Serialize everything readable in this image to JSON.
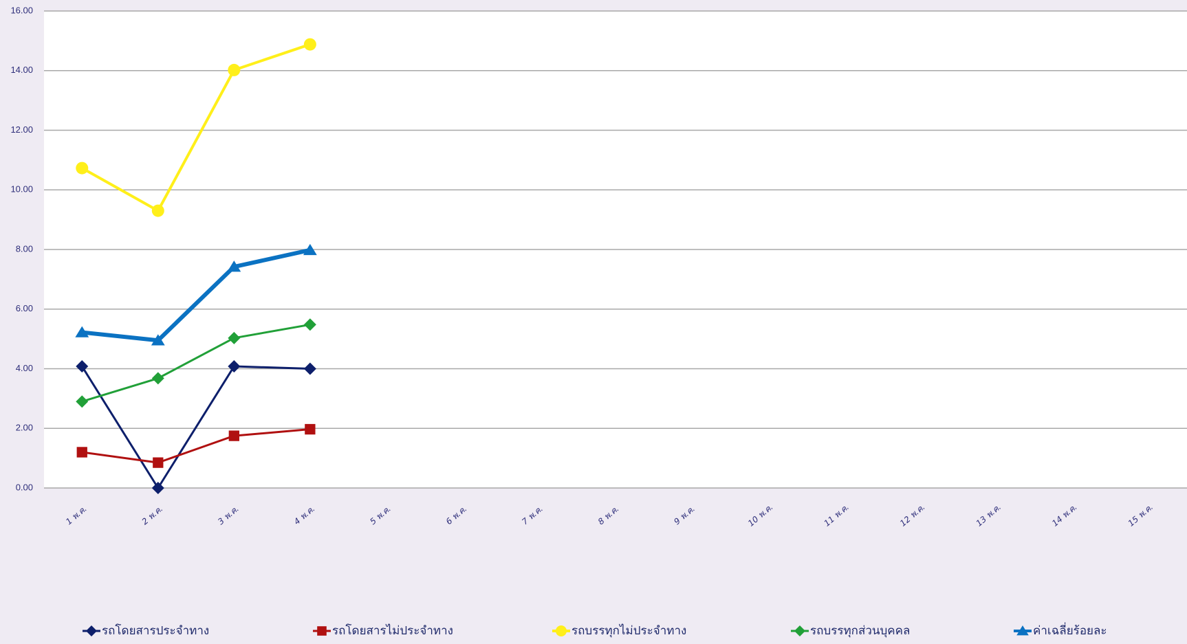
{
  "chart_data": {
    "type": "line",
    "categories": [
      "1 พ.ค.",
      "2 พ.ค.",
      "3 พ.ค.",
      "4 พ.ค.",
      "5 พ.ค.",
      "6 พ.ค.",
      "7 พ.ค.",
      "8 พ.ค.",
      "9 พ.ค.",
      "10 พ.ค.",
      "11 พ.ค.",
      "12 พ.ค.",
      "13 พ.ค.",
      "14 พ.ค.",
      "15 พ.ค."
    ],
    "series": [
      {
        "name": "รถโดยสารประจำทาง",
        "color": "#0d1f6b",
        "marker": "diamond",
        "width": 3,
        "values": [
          4.08,
          0.0,
          4.08,
          4.0,
          null,
          null,
          null,
          null,
          null,
          null,
          null,
          null,
          null,
          null,
          null
        ]
      },
      {
        "name": "รถโดยสารไม่ประจำทาง",
        "color": "#b01010",
        "marker": "square",
        "width": 3,
        "values": [
          1.2,
          0.85,
          1.75,
          1.97,
          null,
          null,
          null,
          null,
          null,
          null,
          null,
          null,
          null,
          null,
          null
        ]
      },
      {
        "name": "รถบรรทุกไม่ประจำทาง",
        "color": "#ffef1a",
        "marker": "circle",
        "width": 4,
        "values": [
          10.73,
          9.3,
          14.02,
          14.88,
          null,
          null,
          null,
          null,
          null,
          null,
          null,
          null,
          null,
          null,
          null
        ]
      },
      {
        "name": "รถบรรทุกส่วนบุคคล",
        "color": "#21a038",
        "marker": "diamond",
        "width": 3,
        "values": [
          2.9,
          3.68,
          5.03,
          5.48,
          null,
          null,
          null,
          null,
          null,
          null,
          null,
          null,
          null,
          null,
          null
        ]
      },
      {
        "name": "ค่าเฉลี่ยร้อยละ",
        "color": "#0b72c2",
        "marker": "triangle",
        "width": 6,
        "values": [
          5.22,
          4.95,
          7.42,
          7.98,
          null,
          null,
          null,
          null,
          null,
          null,
          null,
          null,
          null,
          null,
          null
        ]
      }
    ],
    "ylim": [
      0,
      16
    ],
    "yticks": [
      {
        "value": 0,
        "label": "0.00"
      },
      {
        "value": 2,
        "label": "2.00"
      },
      {
        "value": 4,
        "label": "4.00"
      },
      {
        "value": 6,
        "label": "6.00"
      },
      {
        "value": 8,
        "label": "8.00"
      },
      {
        "value": 10,
        "label": "10.00"
      },
      {
        "value": 12,
        "label": "12.00"
      },
      {
        "value": 14,
        "label": "14.00"
      },
      {
        "value": 16,
        "label": "16.00"
      }
    ],
    "grid": true,
    "legend": "bottom"
  }
}
